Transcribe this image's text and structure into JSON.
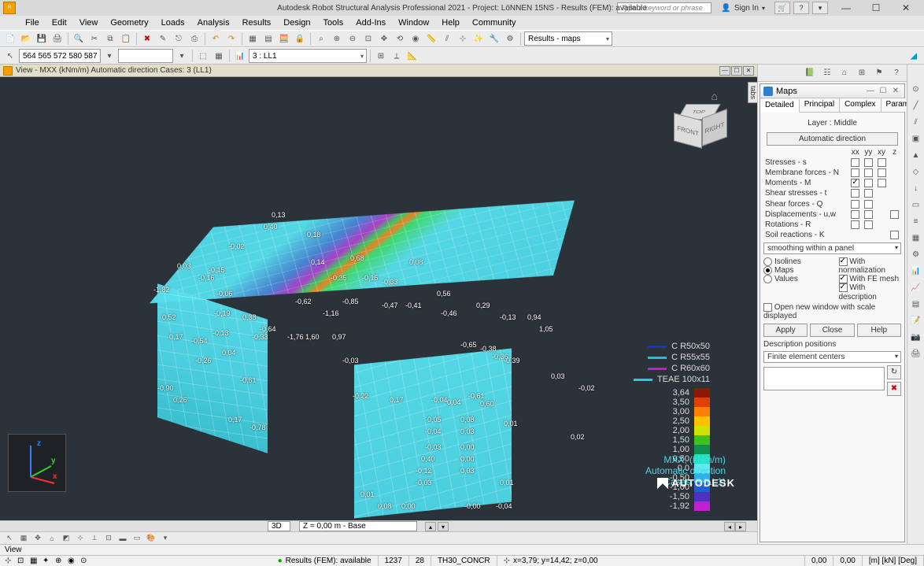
{
  "app": {
    "title": "Autodesk Robot Structural Analysis Professional 2021 - Project: LöNNEN 15NS - Results (FEM): available",
    "search_placeholder": "Type a keyword or phrase",
    "signin": "Sign In"
  },
  "menu": [
    "File",
    "Edit",
    "View",
    "Geometry",
    "Loads",
    "Analysis",
    "Results",
    "Design",
    "Tools",
    "Add-Ins",
    "Window",
    "Help",
    "Community"
  ],
  "toolbar1_select": "Results - maps",
  "toolbar2": {
    "coord_input": "564 565 572 580 587",
    "filter_input": "",
    "case_select": "3 : LL1"
  },
  "view": {
    "title": "View - MXX (kNm/m) Automatic direction Cases: 3 (LL1)",
    "cube": {
      "top": "TOP",
      "front": "FRONT",
      "right": "RIGHT"
    },
    "section_legend": [
      {
        "label": "C R50x50",
        "color": "#2030c0"
      },
      {
        "label": "C R55x55",
        "color": "#20c0d8"
      },
      {
        "label": "C R60x60",
        "color": "#c020c0"
      },
      {
        "label": "TEAE 100x11",
        "color": "#20d0d8"
      }
    ],
    "colorbar": [
      {
        "v": "3,64",
        "c": "#8b1a00"
      },
      {
        "v": "3,50",
        "c": "#e04000"
      },
      {
        "v": "3,00",
        "c": "#ff8000"
      },
      {
        "v": "2,50",
        "c": "#ffc000"
      },
      {
        "v": "2,00",
        "c": "#d0e000"
      },
      {
        "v": "1,50",
        "c": "#40c020"
      },
      {
        "v": "1,00",
        "c": "#109050"
      },
      {
        "v": "0,50",
        "c": "#20e0c0"
      },
      {
        "v": "0,0",
        "c": "#60e8f0"
      },
      {
        "v": "-0,50",
        "c": "#30b0e8"
      },
      {
        "v": "-1,00",
        "c": "#2060d0"
      },
      {
        "v": "-1,50",
        "c": "#5030c0"
      },
      {
        "v": "-1,92",
        "c": "#c020d0"
      }
    ],
    "result_lines": [
      "MXX, (kNm/m)",
      "Automatic direction",
      "Cases: 3 (LL1)"
    ],
    "bottom_mode": "3D",
    "bottom_level": "Z = 0,00 m - Base",
    "axes": {
      "x": "x",
      "y": "y",
      "z": "z"
    },
    "sample_values": [
      {
        "t": "-1,82",
        "l": 5,
        "p": 135
      },
      {
        "t": "0,52",
        "l": 16,
        "p": 170
      },
      {
        "t": "-0,54",
        "l": 53,
        "p": 200
      },
      {
        "t": "-0,90",
        "l": 10,
        "p": 260
      },
      {
        "t": "0,26",
        "l": 30,
        "p": 275
      },
      {
        "t": "0,17",
        "l": 100,
        "p": 300
      },
      {
        "t": "-0,78",
        "l": 127,
        "p": 310
      },
      {
        "t": "0,03",
        "l": 35,
        "p": 105
      },
      {
        "t": "-0,15",
        "l": 75,
        "p": 110
      },
      {
        "t": "0,40",
        "l": 145,
        "p": 55
      },
      {
        "t": "0,13",
        "l": 155,
        "p": 40
      },
      {
        "t": "0,18",
        "l": 200,
        "p": 65
      },
      {
        "t": "-0,02",
        "l": 100,
        "p": 80
      },
      {
        "t": "-0,16",
        "l": 62,
        "p": 120
      },
      {
        "t": "-0,06",
        "l": 85,
        "p": 140
      },
      {
        "t": "-0,62",
        "l": 185,
        "p": 150
      },
      {
        "t": "-0,85",
        "l": 245,
        "p": 150
      },
      {
        "t": "-1,16",
        "l": 220,
        "p": 165
      },
      {
        "t": "1,60",
        "l": 198,
        "p": 195
      },
      {
        "t": "0,97",
        "l": 232,
        "p": 195
      },
      {
        "t": "-1,76",
        "l": 175,
        "p": 195
      },
      {
        "t": "-0,33",
        "l": 130,
        "p": 195
      },
      {
        "t": "-0,64",
        "l": 140,
        "p": 185
      },
      {
        "t": "0,14",
        "l": 205,
        "p": 100
      },
      {
        "t": "0,68",
        "l": 255,
        "p": 95
      },
      {
        "t": "-0,35",
        "l": 230,
        "p": 120
      },
      {
        "t": "-0,15",
        "l": 270,
        "p": 120
      },
      {
        "t": "-0,33",
        "l": 295,
        "p": 125
      },
      {
        "t": "0,08",
        "l": 330,
        "p": 100
      },
      {
        "t": "-0,47",
        "l": 295,
        "p": 155
      },
      {
        "t": "-0,41",
        "l": 325,
        "p": 155
      },
      {
        "t": "0,56",
        "l": 365,
        "p": 140
      },
      {
        "t": "-0,46",
        "l": 370,
        "p": 165
      },
      {
        "t": "0,29",
        "l": 415,
        "p": 155
      },
      {
        "t": "-0,13",
        "l": 445,
        "p": 170
      },
      {
        "t": "0,94",
        "l": 480,
        "p": 170
      },
      {
        "t": "1,05",
        "l": 495,
        "p": 185
      },
      {
        "t": "-0,65",
        "l": 395,
        "p": 205
      },
      {
        "t": "-0,38",
        "l": 420,
        "p": 210
      },
      {
        "t": "-0,36",
        "l": 435,
        "p": 220
      },
      {
        "t": "-0,39",
        "l": 450,
        "p": 225
      },
      {
        "t": "0,03",
        "l": 510,
        "p": 245
      },
      {
        "t": "-0,02",
        "l": 545,
        "p": 260
      },
      {
        "t": "0,02",
        "l": 535,
        "p": 322
      },
      {
        "t": "0,01",
        "l": 450,
        "p": 305
      },
      {
        "t": "-0,22",
        "l": 258,
        "p": 270
      },
      {
        "t": "-0,03",
        "l": 245,
        "p": 225
      },
      {
        "t": "0,17",
        "l": 305,
        "p": 275
      },
      {
        "t": "-0,04",
        "l": 358,
        "p": 275
      },
      {
        "t": "0,04",
        "l": 378,
        "p": 278
      },
      {
        "t": "-0,61",
        "l": 405,
        "p": 270
      },
      {
        "t": "0,60",
        "l": 420,
        "p": 280
      },
      {
        "t": "-0,05",
        "l": 350,
        "p": 300
      },
      {
        "t": "0,08",
        "l": 395,
        "p": 300
      },
      {
        "t": "-0,04",
        "l": 350,
        "p": 315
      },
      {
        "t": "0,03",
        "l": 395,
        "p": 315
      },
      {
        "t": "-0,03",
        "l": 350,
        "p": 335
      },
      {
        "t": "0,00",
        "l": 395,
        "p": 335
      },
      {
        "t": "0,40",
        "l": 345,
        "p": 350
      },
      {
        "t": "0,00",
        "l": 395,
        "p": 350
      },
      {
        "t": "-0,12",
        "l": 338,
        "p": 365
      },
      {
        "t": "0,03",
        "l": 395,
        "p": 365
      },
      {
        "t": "-0,03",
        "l": 338,
        "p": 380
      },
      {
        "t": "0,01",
        "l": 445,
        "p": 380
      },
      {
        "t": "0,01",
        "l": 268,
        "p": 395
      },
      {
        "t": "0,08",
        "l": 290,
        "p": 410
      },
      {
        "t": "0,00",
        "l": 320,
        "p": 410
      },
      {
        "t": "-0,00",
        "l": 400,
        "p": 410
      },
      {
        "t": "-0,04",
        "l": 440,
        "p": 410
      },
      {
        "t": "-0,61",
        "l": 115,
        "p": 250
      },
      {
        "t": "-0,26",
        "l": 58,
        "p": 225
      },
      {
        "t": "-0,13",
        "l": 80,
        "p": 190
      },
      {
        "t": "0,17",
        "l": 25,
        "p": 195
      },
      {
        "t": "0,04",
        "l": 92,
        "p": 215
      },
      {
        "t": "0,38",
        "l": 118,
        "p": 170
      },
      {
        "t": "-0,19",
        "l": 82,
        "p": 165
      }
    ]
  },
  "maps_panel": {
    "title": "Maps",
    "tabs": [
      "Detailed",
      "Principal",
      "Complex",
      "Parameter"
    ],
    "active_tab": 0,
    "layer": "Layer : Middle",
    "auto_dir": "Automatic direction",
    "cols": [
      "xx",
      "yy",
      "xy",
      "z"
    ],
    "rows": [
      {
        "label": "Stresses - s",
        "chk": [
          false,
          false,
          false
        ]
      },
      {
        "label": "Membrane forces - N",
        "chk": [
          false,
          false,
          false
        ]
      },
      {
        "label": "Moments - M",
        "chk": [
          true,
          false,
          false
        ]
      },
      {
        "label": "Shear stresses - t",
        "chk": [
          false,
          false
        ]
      },
      {
        "label": "Shear forces - Q",
        "chk": [
          false,
          false
        ]
      },
      {
        "label": "Displacements - u,w",
        "chk": [
          false,
          false,
          null,
          false
        ]
      },
      {
        "label": "Rotations - R",
        "chk": [
          false,
          false
        ]
      },
      {
        "label": "Soil reactions - K",
        "chk": [
          null,
          null,
          null,
          false
        ]
      }
    ],
    "smoothing": "smoothing within a panel",
    "display_mode": {
      "isolines": false,
      "maps": true,
      "values": false
    },
    "opts": {
      "norm": true,
      "fe": true,
      "desc": true,
      "newwin": false
    },
    "opt_labels": {
      "norm": "With normalization",
      "fe": "With FE mesh",
      "desc": "With description",
      "newwin": "Open new window with scale displayed"
    },
    "mode_labels": {
      "isolines": "Isolines",
      "maps": "Maps",
      "values": "Values"
    },
    "buttons": {
      "apply": "Apply",
      "close": "Close",
      "help": "Help"
    },
    "desc_pos_label": "Description positions",
    "desc_pos": "Finite element centers"
  },
  "status": {
    "line1": "View",
    "results": "Results (FEM): available",
    "n1": "1237",
    "n2": "28",
    "mat": "TH30_CONCR",
    "coords": "x=3,79; y=14,42; z=0,00",
    "v1": "0,00",
    "v2": "0,00",
    "units": "[m] [kN] [Deg]"
  },
  "autodesk": "AUTODESK"
}
